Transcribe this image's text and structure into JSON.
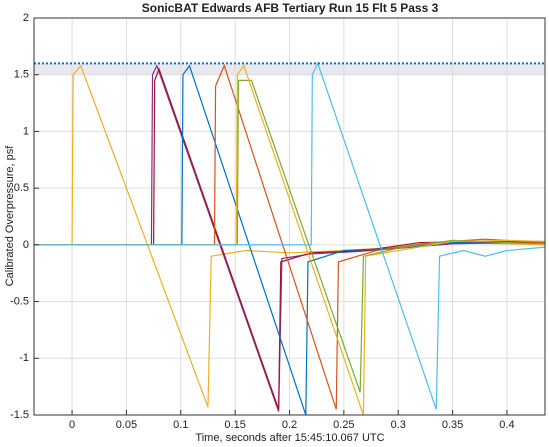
{
  "chart_data": {
    "type": "line",
    "title": "SonicBAT Edwards AFB Tertiary Run 15 Flt 5 Pass 3",
    "x_label": "Time, seconds after 15:45:10.067 UTC",
    "y_label": "Calibrated Overpressure, psf",
    "xlim": [
      -0.035,
      0.435
    ],
    "ylim": [
      -1.5,
      2
    ],
    "xticks": [
      0,
      0.05,
      0.1,
      0.15,
      0.2,
      0.25,
      0.3,
      0.35,
      0.4
    ],
    "yticks": [
      -1.5,
      -1,
      -0.5,
      0,
      0.5,
      1,
      1.5,
      2
    ],
    "grid": true,
    "hline": {
      "y": 1.6,
      "color": "#0072BD"
    },
    "band": {
      "range": [
        1.5,
        1.6
      ],
      "color": "#e8e8ee"
    },
    "series": [
      {
        "color": "#EDB120",
        "x": [
          -0.035,
          0,
          0.001,
          0.008,
          0.125,
          0.128,
          0.16,
          0.2,
          0.25,
          0.3,
          0.35,
          0.4,
          0.435
        ],
        "values": [
          0,
          0,
          1.5,
          1.58,
          -1.43,
          -0.1,
          -0.05,
          -0.07,
          -0.05,
          -0.02,
          0.02,
          0.01,
          0
        ]
      },
      {
        "color": "#7E2F8E",
        "x": [
          -0.035,
          0.073,
          0.074,
          0.078,
          0.19,
          0.193,
          0.22,
          0.26,
          0.3,
          0.35,
          0.4,
          0.435
        ],
        "values": [
          0,
          0,
          1.5,
          1.58,
          -1.47,
          -0.12,
          -0.08,
          -0.06,
          -0.03,
          0.01,
          0.02,
          0.02
        ]
      },
      {
        "color": "#A2142F",
        "x": [
          -0.035,
          0.075,
          0.076,
          0.08,
          0.19,
          0.192,
          0.22,
          0.27,
          0.32,
          0.38,
          0.435
        ],
        "values": [
          0,
          0,
          1.45,
          1.55,
          -1.45,
          -0.15,
          -0.07,
          -0.05,
          0.02,
          0.03,
          0.02
        ]
      },
      {
        "color": "#0072BD",
        "x": [
          -0.035,
          0.101,
          0.102,
          0.108,
          0.215,
          0.217,
          0.25,
          0.3,
          0.35,
          0.4,
          0.435
        ],
        "values": [
          0,
          0,
          1.5,
          1.58,
          -1.5,
          -0.15,
          -0.05,
          -0.03,
          0.02,
          0.03,
          0.03
        ]
      },
      {
        "color": "#D95319",
        "x": [
          -0.035,
          0.131,
          0.132,
          0.14,
          0.243,
          0.245,
          0.28,
          0.33,
          0.38,
          0.435
        ],
        "values": [
          0,
          0,
          1.4,
          1.58,
          -1.45,
          -0.15,
          -0.05,
          0.02,
          0.05,
          0.02
        ]
      },
      {
        "color": "#77AC30",
        "x": [
          -0.035,
          0.152,
          0.153,
          0.165,
          0.265,
          0.268,
          0.3,
          0.35,
          0.4,
          0.435
        ],
        "values": [
          0,
          0,
          1.45,
          1.45,
          -1.3,
          -0.1,
          -0.03,
          0.04,
          0.02,
          0.01
        ]
      },
      {
        "color": "#EDB120",
        "x": [
          -0.035,
          0.151,
          0.152,
          0.158,
          0.268,
          0.27,
          0.3,
          0.35,
          0.4,
          0.435
        ],
        "values": [
          0,
          0,
          1.5,
          1.58,
          -1.5,
          -0.1,
          -0.05,
          0.03,
          0.04,
          0.03
        ]
      },
      {
        "color": "#4DBEEE",
        "x": [
          -0.035,
          0.22,
          0.221,
          0.226,
          0.335,
          0.338,
          0.36,
          0.38,
          0.4,
          0.435
        ],
        "values": [
          0,
          0,
          1.5,
          1.6,
          -1.45,
          -0.1,
          -0.05,
          -0.1,
          -0.05,
          -0.02
        ]
      }
    ]
  }
}
